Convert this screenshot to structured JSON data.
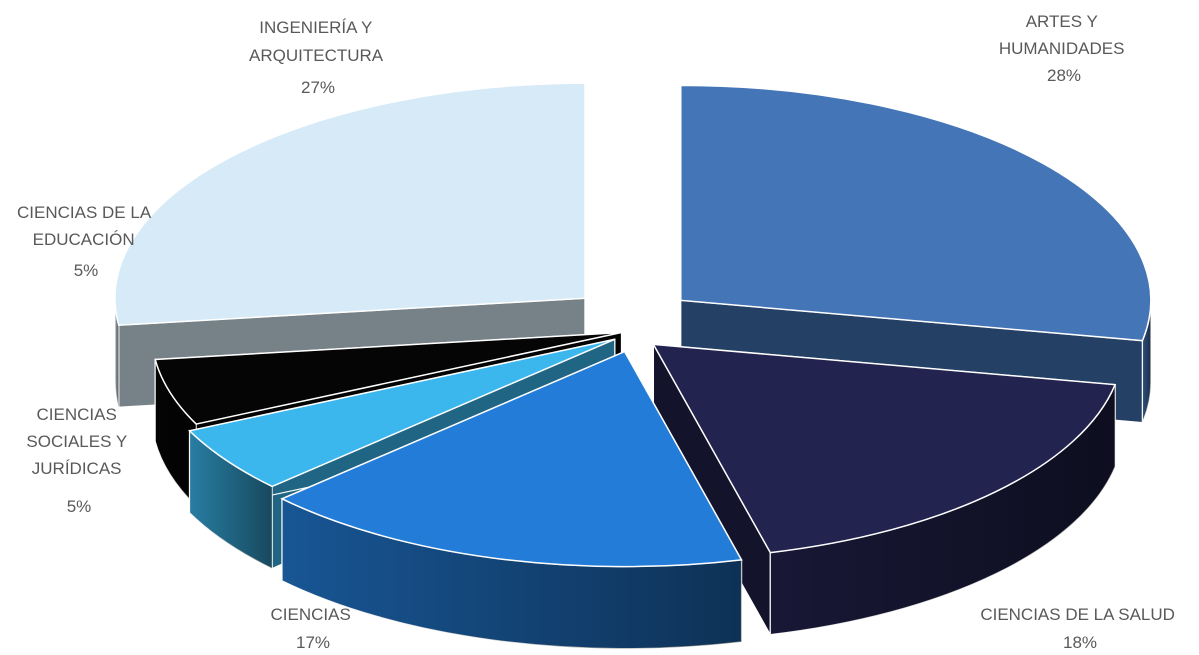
{
  "chart_data": {
    "type": "pie",
    "style": "3d-exploded",
    "slices": [
      {
        "label_lines": [
          "ARTES Y",
          "HUMANIDADES"
        ],
        "percent_label": "28%",
        "value": 28,
        "color": "#4375b7"
      },
      {
        "label_lines": [
          "CIENCIAS DE LA SALUD"
        ],
        "percent_label": "18%",
        "value": 18,
        "color": "#23234f"
      },
      {
        "label_lines": [
          "CIENCIAS"
        ],
        "percent_label": "17%",
        "value": 17,
        "color": "#237dd8"
      },
      {
        "label_lines": [
          "CIENCIAS",
          "SOCIALES Y",
          "JURÍDICAS"
        ],
        "percent_label": "5%",
        "value": 5,
        "color": "#3bb7ee"
      },
      {
        "label_lines": [
          "CIENCIAS DE LA",
          "EDUCACIÓN"
        ],
        "percent_label": "5%",
        "value": 5,
        "color": "#050505"
      },
      {
        "label_lines": [
          "INGENIERÍA Y",
          "ARQUITECTURA"
        ],
        "percent_label": "27%",
        "value": 27,
        "color": "#d6eaf7"
      }
    ]
  }
}
